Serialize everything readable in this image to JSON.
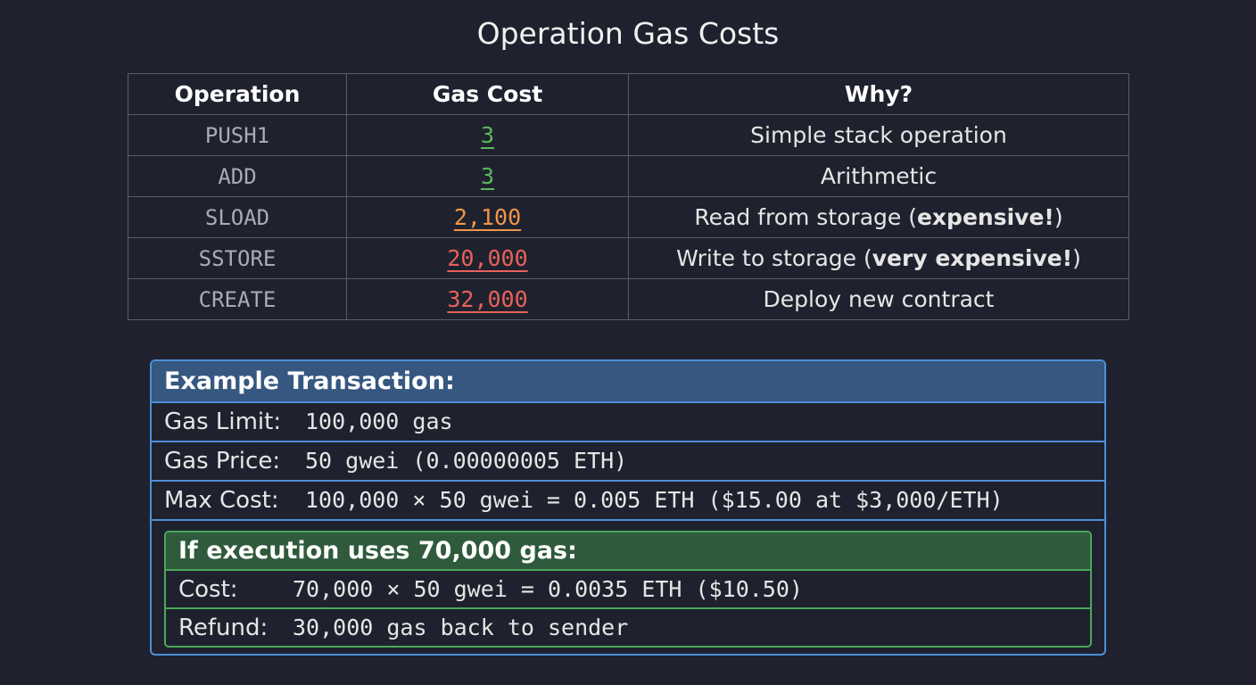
{
  "title": "Operation Gas Costs",
  "table": {
    "header": [
      "Operation",
      "Gas Cost",
      "Why?"
    ],
    "rows": [
      {
        "operation": "PUSH1",
        "gas_cost": "3",
        "color": "#5cb85c",
        "why": [
          {
            "text": "Simple stack operation",
            "bold": false
          }
        ]
      },
      {
        "operation": "ADD",
        "gas_cost": "3",
        "color": "#5cb85c",
        "why": [
          {
            "text": "Arithmetic",
            "bold": false
          }
        ]
      },
      {
        "operation": "SLOAD",
        "gas_cost": "2,100",
        "color": "#f0954a",
        "why": [
          {
            "text": "Read from storage (",
            "bold": false
          },
          {
            "text": "expensive!",
            "bold": true
          },
          {
            "text": ")",
            "bold": false
          }
        ]
      },
      {
        "operation": "SSTORE",
        "gas_cost": "20,000",
        "color": "#e8615a",
        "why": [
          {
            "text": "Write to storage (",
            "bold": false
          },
          {
            "text": "very expensive!",
            "bold": true
          },
          {
            "text": ")",
            "bold": false
          }
        ]
      },
      {
        "operation": "CREATE",
        "gas_cost": "32,000",
        "color": "#e8615a",
        "why": [
          {
            "text": "Deploy new contract",
            "bold": false
          }
        ]
      }
    ]
  },
  "example": {
    "title": "Example Transaction:",
    "rows": [
      {
        "label": "Gas Limit:",
        "value": "100,000 gas"
      },
      {
        "label": "Gas Price:",
        "value": "50 gwei (0.00000005 ETH)"
      },
      {
        "label": "Max Cost:",
        "value": "100,000 × 50 gwei = 0.005 ETH ($15.00 at $3,000/ETH)"
      }
    ],
    "execution": {
      "title": "If execution uses 70,000 gas:",
      "rows": [
        {
          "label": "Cost:",
          "value": "70,000 × 50 gwei = 0.0035 ETH ($10.50)"
        },
        {
          "label": "Refund:",
          "value": "30,000 gas back to sender"
        }
      ]
    }
  }
}
